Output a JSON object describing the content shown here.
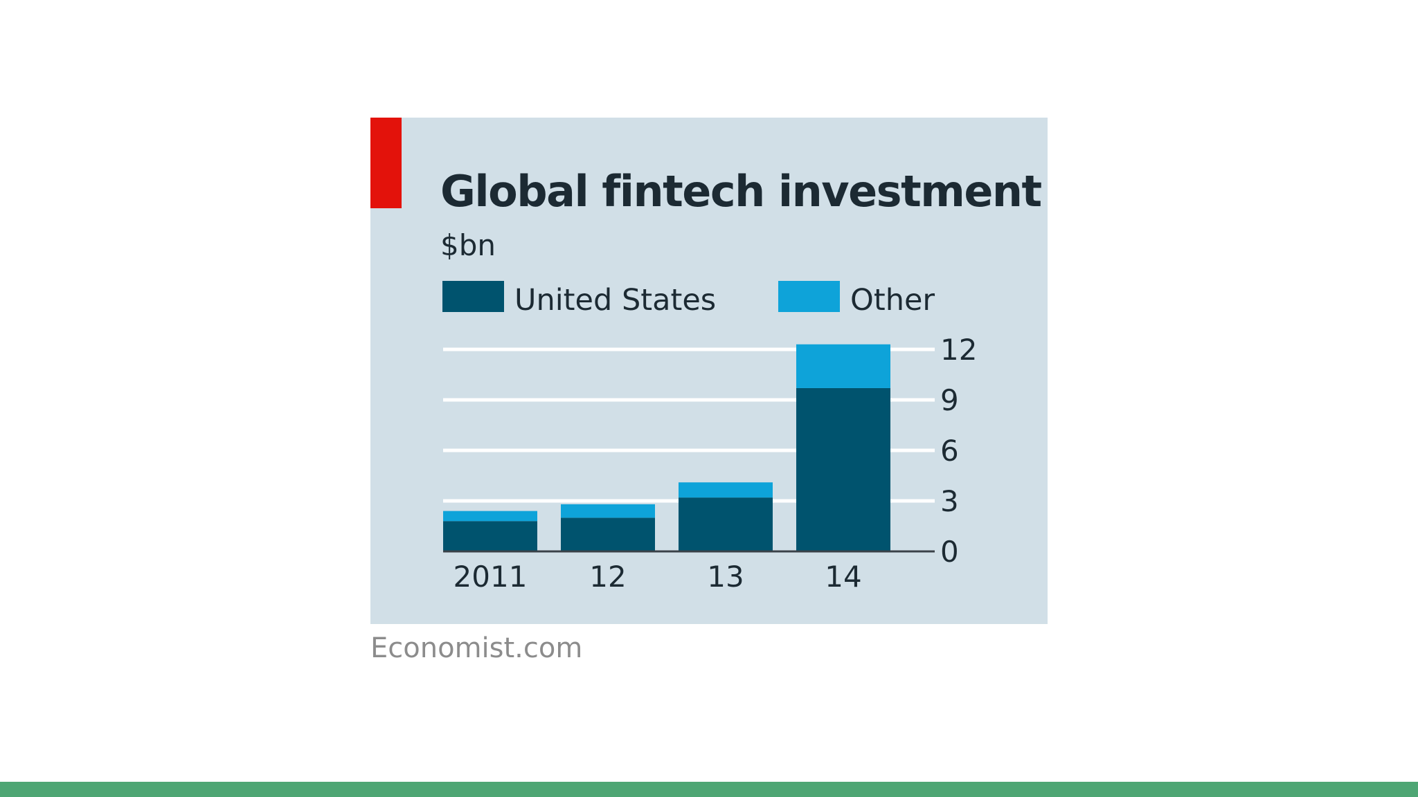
{
  "chart_data": {
    "type": "bar",
    "stacked": true,
    "title": "Global fintech investment",
    "subtitle": "$bn",
    "categories": [
      "2011",
      "12",
      "13",
      "14"
    ],
    "series": [
      {
        "name": "United States",
        "values": [
          1.8,
          2.0,
          3.2,
          9.7
        ],
        "color": "#00536e"
      },
      {
        "name": "Other",
        "values": [
          0.6,
          0.8,
          0.9,
          2.6
        ],
        "color": "#0ea3d9"
      }
    ],
    "yticks": [
      "0",
      "3",
      "6",
      "9",
      "12"
    ],
    "ylim": [
      0,
      12
    ],
    "yaxis_position": "right",
    "grid": true,
    "legend_position": "top-left",
    "source": "Economist.com",
    "colors": {
      "panel_background": "#d1dfe7",
      "accent_tab": "#e3120b",
      "gridline": "#ffffff",
      "footer_bar": "#4ea674"
    }
  }
}
